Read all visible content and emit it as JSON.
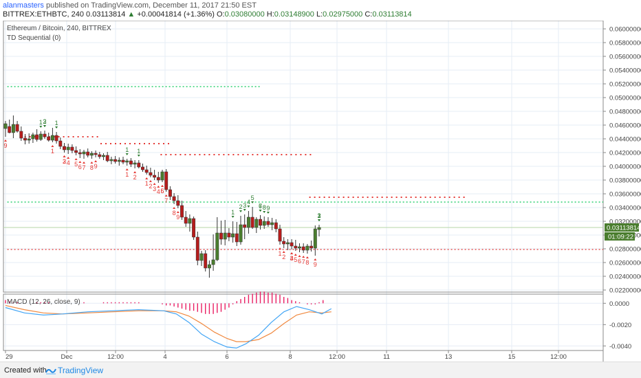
{
  "header": {
    "user": "alanmasters",
    "published_text": " published on TradingView.com, December 11, 2017 21:50 EST",
    "symbol": "BITTREX:ETHBTC, 240",
    "last": "0.03113814",
    "change_arrow": "▲",
    "change": "+0.00041814 (+1.36%)",
    "o_key": "O:",
    "o_val": "0.03080000",
    "h_key": "H:",
    "h_val": "0.03148900",
    "l_key": "L:",
    "l_val": "0.02975000",
    "c_key": "C:",
    "c_val": "0.03113814"
  },
  "pane": {
    "title": "Ethereum / Bitcoin, 240, BITTREX",
    "indicator": "TD Sequential (0)",
    "price_tag": "0.03113814",
    "countdown": "01:09:22"
  },
  "macd": {
    "label": "MACD (12, 26, close, 9)"
  },
  "footer": {
    "created": "Created with",
    "brand": "TradingView"
  },
  "colors": {
    "up": "#4a7d2e",
    "down": "#b71c1c",
    "buy_count": "#2e7d32",
    "sell_count": "#e53935",
    "macd_line": "#42a5f5",
    "signal_line": "#f0883e",
    "histogram": "#e91e63"
  },
  "chart_data": {
    "type": "candlestick",
    "price_axis": {
      "ticks": [
        "0.06000000",
        "0.05800000",
        "0.05600000",
        "0.05400000",
        "0.05200000",
        "0.05000000",
        "0.04800000",
        "0.04600000",
        "0.04400000",
        "0.04200000",
        "0.04000000",
        "0.03800000",
        "0.03600000",
        "0.03400000",
        "0.03200000",
        "0.03000000",
        "0.02800000",
        "0.02600000",
        "0.02400000",
        "0.02200000"
      ],
      "ylim": [
        0.0217,
        0.0612
      ]
    },
    "macd_axis": {
      "ticks": [
        "0.0000",
        "-0.0020",
        "-0.0040"
      ],
      "ylim": [
        -0.0043,
        0.0006
      ]
    },
    "time_axis": [
      "29",
      "Dec",
      "12:00",
      "4",
      "6",
      "8",
      "12:00",
      "11",
      "13",
      "15",
      "12:00"
    ],
    "candles": [
      {
        "o": 0.0455,
        "h": 0.0466,
        "l": 0.0443,
        "c": 0.0462
      },
      {
        "o": 0.0458,
        "h": 0.0468,
        "l": 0.0448,
        "c": 0.0449
      },
      {
        "o": 0.0449,
        "h": 0.0474,
        "l": 0.0441,
        "c": 0.0461
      },
      {
        "o": 0.0461,
        "h": 0.0466,
        "l": 0.0449,
        "c": 0.0451
      },
      {
        "o": 0.0451,
        "h": 0.0458,
        "l": 0.0437,
        "c": 0.0441
      },
      {
        "o": 0.0441,
        "h": 0.0447,
        "l": 0.0432,
        "c": 0.0438
      },
      {
        "o": 0.0438,
        "h": 0.0448,
        "l": 0.0433,
        "c": 0.044
      },
      {
        "o": 0.044,
        "h": 0.0449,
        "l": 0.0434,
        "c": 0.0446
      },
      {
        "o": 0.0446,
        "h": 0.0454,
        "l": 0.0436,
        "c": 0.0439
      },
      {
        "o": 0.0439,
        "h": 0.0451,
        "l": 0.0437,
        "c": 0.0447
      },
      {
        "o": 0.0447,
        "h": 0.0452,
        "l": 0.044,
        "c": 0.0443
      },
      {
        "o": 0.0443,
        "h": 0.0449,
        "l": 0.0436,
        "c": 0.0438
      },
      {
        "o": 0.0438,
        "h": 0.0456,
        "l": 0.0435,
        "c": 0.0445
      },
      {
        "o": 0.0445,
        "h": 0.045,
        "l": 0.0433,
        "c": 0.0437
      },
      {
        "o": 0.0437,
        "h": 0.0442,
        "l": 0.0425,
        "c": 0.0429
      },
      {
        "o": 0.0429,
        "h": 0.0434,
        "l": 0.042,
        "c": 0.0424
      },
      {
        "o": 0.0424,
        "h": 0.0433,
        "l": 0.0418,
        "c": 0.0428
      },
      {
        "o": 0.0428,
        "h": 0.0432,
        "l": 0.0419,
        "c": 0.0423
      },
      {
        "o": 0.0423,
        "h": 0.0429,
        "l": 0.0416,
        "c": 0.042
      },
      {
        "o": 0.042,
        "h": 0.0425,
        "l": 0.0412,
        "c": 0.0418
      },
      {
        "o": 0.0418,
        "h": 0.0424,
        "l": 0.0411,
        "c": 0.0421
      },
      {
        "o": 0.0421,
        "h": 0.0426,
        "l": 0.0413,
        "c": 0.0416
      },
      {
        "o": 0.0416,
        "h": 0.0422,
        "l": 0.0411,
        "c": 0.0419
      },
      {
        "o": 0.0419,
        "h": 0.0423,
        "l": 0.0413,
        "c": 0.0417
      },
      {
        "o": 0.0417,
        "h": 0.0421,
        "l": 0.0411,
        "c": 0.0414
      },
      {
        "o": 0.0414,
        "h": 0.0419,
        "l": 0.0409,
        "c": 0.0416
      },
      {
        "o": 0.0416,
        "h": 0.0421,
        "l": 0.0406,
        "c": 0.0408
      },
      {
        "o": 0.0408,
        "h": 0.0414,
        "l": 0.0403,
        "c": 0.041
      },
      {
        "o": 0.041,
        "h": 0.0415,
        "l": 0.0404,
        "c": 0.0407
      },
      {
        "o": 0.0407,
        "h": 0.0413,
        "l": 0.0401,
        "c": 0.0409
      },
      {
        "o": 0.0409,
        "h": 0.0414,
        "l": 0.0403,
        "c": 0.0406
      },
      {
        "o": 0.0406,
        "h": 0.0411,
        "l": 0.0401,
        "c": 0.0408
      },
      {
        "o": 0.0408,
        "h": 0.0412,
        "l": 0.0399,
        "c": 0.0403
      },
      {
        "o": 0.0403,
        "h": 0.0409,
        "l": 0.0397,
        "c": 0.0405
      },
      {
        "o": 0.0405,
        "h": 0.0409,
        "l": 0.0397,
        "c": 0.0399
      },
      {
        "o": 0.0399,
        "h": 0.0404,
        "l": 0.0392,
        "c": 0.0395
      },
      {
        "o": 0.0395,
        "h": 0.0401,
        "l": 0.0388,
        "c": 0.0391
      },
      {
        "o": 0.0391,
        "h": 0.0398,
        "l": 0.0384,
        "c": 0.0387
      },
      {
        "o": 0.0387,
        "h": 0.0395,
        "l": 0.038,
        "c": 0.0384
      },
      {
        "o": 0.0384,
        "h": 0.0392,
        "l": 0.0376,
        "c": 0.038
      },
      {
        "o": 0.038,
        "h": 0.0395,
        "l": 0.0377,
        "c": 0.0392
      },
      {
        "o": 0.0392,
        "h": 0.0396,
        "l": 0.0363,
        "c": 0.0366
      },
      {
        "o": 0.0366,
        "h": 0.0371,
        "l": 0.0351,
        "c": 0.0356
      },
      {
        "o": 0.0356,
        "h": 0.0361,
        "l": 0.0345,
        "c": 0.035
      },
      {
        "o": 0.035,
        "h": 0.0358,
        "l": 0.0339,
        "c": 0.0343
      },
      {
        "o": 0.0343,
        "h": 0.035,
        "l": 0.0322,
        "c": 0.0326
      },
      {
        "o": 0.0326,
        "h": 0.0335,
        "l": 0.0312,
        "c": 0.0317
      },
      {
        "o": 0.0317,
        "h": 0.033,
        "l": 0.0305,
        "c": 0.0324
      },
      {
        "o": 0.0324,
        "h": 0.0327,
        "l": 0.0293,
        "c": 0.0297
      },
      {
        "o": 0.0297,
        "h": 0.0305,
        "l": 0.0256,
        "c": 0.0263
      },
      {
        "o": 0.0263,
        "h": 0.0277,
        "l": 0.0255,
        "c": 0.0273
      },
      {
        "o": 0.0273,
        "h": 0.0278,
        "l": 0.0247,
        "c": 0.0252
      },
      {
        "o": 0.0252,
        "h": 0.0263,
        "l": 0.0238,
        "c": 0.0257
      },
      {
        "o": 0.0257,
        "h": 0.0301,
        "l": 0.0248,
        "c": 0.0264
      },
      {
        "o": 0.0264,
        "h": 0.0326,
        "l": 0.0262,
        "c": 0.0303
      },
      {
        "o": 0.0303,
        "h": 0.0321,
        "l": 0.0286,
        "c": 0.0294
      },
      {
        "o": 0.0294,
        "h": 0.0322,
        "l": 0.0285,
        "c": 0.0303
      },
      {
        "o": 0.0303,
        "h": 0.031,
        "l": 0.0291,
        "c": 0.0297
      },
      {
        "o": 0.0297,
        "h": 0.032,
        "l": 0.0289,
        "c": 0.0302
      },
      {
        "o": 0.0302,
        "h": 0.0319,
        "l": 0.0284,
        "c": 0.029
      },
      {
        "o": 0.029,
        "h": 0.0328,
        "l": 0.0286,
        "c": 0.0315
      },
      {
        "o": 0.0315,
        "h": 0.033,
        "l": 0.0294,
        "c": 0.0311
      },
      {
        "o": 0.0311,
        "h": 0.0335,
        "l": 0.0302,
        "c": 0.0326
      },
      {
        "o": 0.0326,
        "h": 0.0341,
        "l": 0.0309,
        "c": 0.0311
      },
      {
        "o": 0.0311,
        "h": 0.0326,
        "l": 0.0303,
        "c": 0.0323
      },
      {
        "o": 0.0323,
        "h": 0.0329,
        "l": 0.0308,
        "c": 0.0314
      },
      {
        "o": 0.0314,
        "h": 0.0327,
        "l": 0.0309,
        "c": 0.032
      },
      {
        "o": 0.032,
        "h": 0.0326,
        "l": 0.0312,
        "c": 0.0315
      },
      {
        "o": 0.0315,
        "h": 0.0325,
        "l": 0.0307,
        "c": 0.0318
      },
      {
        "o": 0.0318,
        "h": 0.0323,
        "l": 0.0304,
        "c": 0.0309
      },
      {
        "o": 0.0309,
        "h": 0.0315,
        "l": 0.0286,
        "c": 0.0291
      },
      {
        "o": 0.0291,
        "h": 0.0297,
        "l": 0.0281,
        "c": 0.0287
      },
      {
        "o": 0.0287,
        "h": 0.0294,
        "l": 0.0278,
        "c": 0.0289
      },
      {
        "o": 0.0289,
        "h": 0.0294,
        "l": 0.0279,
        "c": 0.0284
      },
      {
        "o": 0.0284,
        "h": 0.0293,
        "l": 0.0277,
        "c": 0.0281
      },
      {
        "o": 0.0281,
        "h": 0.0288,
        "l": 0.0275,
        "c": 0.0283
      },
      {
        "o": 0.0283,
        "h": 0.0288,
        "l": 0.0274,
        "c": 0.0278
      },
      {
        "o": 0.0278,
        "h": 0.0287,
        "l": 0.0273,
        "c": 0.0284
      },
      {
        "o": 0.0284,
        "h": 0.0292,
        "l": 0.0276,
        "c": 0.0281
      },
      {
        "o": 0.0281,
        "h": 0.0314,
        "l": 0.027,
        "c": 0.0309
      },
      {
        "o": 0.0308,
        "h": 0.0315,
        "l": 0.0298,
        "c": 0.0311
      }
    ],
    "levels": [
      {
        "price": 0.0516,
        "from": 1,
        "to": 81,
        "color": "#00c853"
      },
      {
        "price": 0.0348,
        "from": 1,
        "to": 160,
        "color": "#00c853"
      },
      {
        "price": 0.0279,
        "from": 1,
        "to": 160,
        "color": "#e53935"
      }
    ],
    "resistance_dots": [
      {
        "price": 0.0443,
        "from": 6,
        "to": 30,
        "color": "#e53935"
      },
      {
        "price": 0.0433,
        "from": 30,
        "to": 52,
        "color": "#e53935"
      },
      {
        "price": 0.0417,
        "from": 49,
        "to": 97,
        "color": "#e53935"
      },
      {
        "price": 0.0355,
        "from": 96,
        "to": 146,
        "color": "#e53935"
      }
    ],
    "buy_counts": [
      {
        "i": 11,
        "text": "1"
      },
      {
        "i": 12,
        "text": "2"
      },
      {
        "i": 13,
        "text": "3"
      },
      {
        "i": 16,
        "text": "1"
      },
      {
        "i": 38,
        "text": "1"
      },
      {
        "i": 42,
        "text": "1"
      },
      {
        "i": 72,
        "text": "1"
      },
      {
        "i": 74,
        "text": "2"
      },
      {
        "i": 75,
        "text": "3"
      },
      {
        "i": 77,
        "text": "4"
      },
      {
        "i": 78,
        "text": "5"
      },
      {
        "i": 80,
        "text": "6"
      },
      {
        "i": 81,
        "text": "7"
      },
      {
        "i": 82,
        "text": "8"
      },
      {
        "i": 83,
        "text": "9"
      },
      {
        "i": 99,
        "text": "1"
      },
      {
        "i": 100,
        "text": "2"
      },
      {
        "i": 101,
        "text": "3"
      }
    ],
    "sell_counts": [
      {
        "i": 0,
        "text": "9"
      },
      {
        "i": 15,
        "text": "1"
      },
      {
        "i": 18,
        "text": "2"
      },
      {
        "i": 19,
        "text": "3"
      },
      {
        "i": 20,
        "text": "4"
      },
      {
        "i": 22,
        "text": "5"
      },
      {
        "i": 23,
        "text": "6"
      },
      {
        "i": 25,
        "text": "7"
      },
      {
        "i": 27,
        "text": "8"
      },
      {
        "i": 28,
        "text": "9"
      },
      {
        "i": 39,
        "text": "1"
      },
      {
        "i": 41,
        "text": "2"
      },
      {
        "i": 44,
        "text": "1"
      },
      {
        "i": 46,
        "text": "2"
      },
      {
        "i": 47,
        "text": "3"
      },
      {
        "i": 48,
        "text": "4"
      },
      {
        "i": 49,
        "text": "5"
      },
      {
        "i": 50,
        "text": "6"
      },
      {
        "i": 51,
        "text": "7"
      },
      {
        "i": 53,
        "text": "8"
      },
      {
        "i": 55,
        "text": "9"
      },
      {
        "i": 87,
        "text": "1"
      },
      {
        "i": 88,
        "text": "2"
      },
      {
        "i": 90,
        "text": "3"
      },
      {
        "i": 91,
        "text": "4"
      },
      {
        "i": 92,
        "text": "5"
      },
      {
        "i": 93,
        "text": "6"
      },
      {
        "i": 94,
        "text": "7"
      },
      {
        "i": 96,
        "text": "8"
      },
      {
        "i": 98,
        "text": "9"
      }
    ],
    "macd_line": [
      [
        0,
        -0.0004
      ],
      [
        6,
        -0.0009
      ],
      [
        12,
        -0.0011
      ],
      [
        18,
        -0.001
      ],
      [
        26,
        -0.0008
      ],
      [
        34,
        -0.0007
      ],
      [
        42,
        -0.0006
      ],
      [
        50,
        -0.0007
      ],
      [
        54,
        -0.001
      ],
      [
        58,
        -0.0018
      ],
      [
        62,
        -0.0029
      ],
      [
        66,
        -0.0036
      ],
      [
        70,
        -0.0041
      ],
      [
        73,
        -0.0042
      ],
      [
        76,
        -0.0038
      ],
      [
        80,
        -0.003
      ],
      [
        84,
        -0.0018
      ],
      [
        88,
        -0.0008
      ],
      [
        92,
        -0.0003
      ],
      [
        96,
        -0.0006
      ],
      [
        100,
        -0.001
      ],
      [
        103,
        -0.0005
      ]
    ],
    "signal_line": [
      [
        0,
        -0.0002
      ],
      [
        6,
        -0.0006
      ],
      [
        12,
        -0.0009
      ],
      [
        18,
        -0.001
      ],
      [
        26,
        -0.0009
      ],
      [
        34,
        -0.0008
      ],
      [
        42,
        -0.0007
      ],
      [
        50,
        -0.0007
      ],
      [
        54,
        -0.0008
      ],
      [
        58,
        -0.0012
      ],
      [
        62,
        -0.0019
      ],
      [
        66,
        -0.0027
      ],
      [
        70,
        -0.0033
      ],
      [
        73,
        -0.0036
      ],
      [
        76,
        -0.0036
      ],
      [
        80,
        -0.0034
      ],
      [
        84,
        -0.0028
      ],
      [
        88,
        -0.0019
      ],
      [
        92,
        -0.0011
      ],
      [
        96,
        -0.0008
      ],
      [
        100,
        -0.0009
      ],
      [
        103,
        -0.0008
      ]
    ],
    "histogram": [
      0.0003,
      0.0002,
      0.0001,
      0.0001,
      0,
      0,
      0,
      0,
      0.0001,
      0.0001,
      0.0001,
      0.0001,
      0,
      0,
      0,
      0,
      0,
      0,
      0,
      0,
      0.0001,
      0,
      0,
      0,
      0,
      0.0001,
      0.0001,
      0.0001,
      0.0001,
      0.0001,
      0.0001,
      0.0001,
      0.0001,
      0.0001,
      0.0001,
      0,
      0,
      0,
      0,
      0,
      -0.0001,
      -0.0002,
      -0.0002,
      -0.0003,
      -0.0004,
      -0.0005,
      -0.0006,
      -0.0007,
      -0.0007,
      -0.0008,
      -0.0009,
      -0.001,
      -0.001,
      -0.001,
      -0.0009,
      -0.0008,
      -0.0006,
      -0.0004,
      -0.0001,
      0.0002,
      0.0004,
      0.0006,
      0.0008,
      0.0009,
      0.001,
      0.0011,
      0.0011,
      0.001,
      0.001,
      0.0009,
      0.0008,
      0.0006,
      0.0005,
      0.0003,
      0.0002,
      0.0001,
      0,
      -0.0001,
      -0.0001,
      -0.0001,
      0.0001,
      0.0003
    ]
  }
}
